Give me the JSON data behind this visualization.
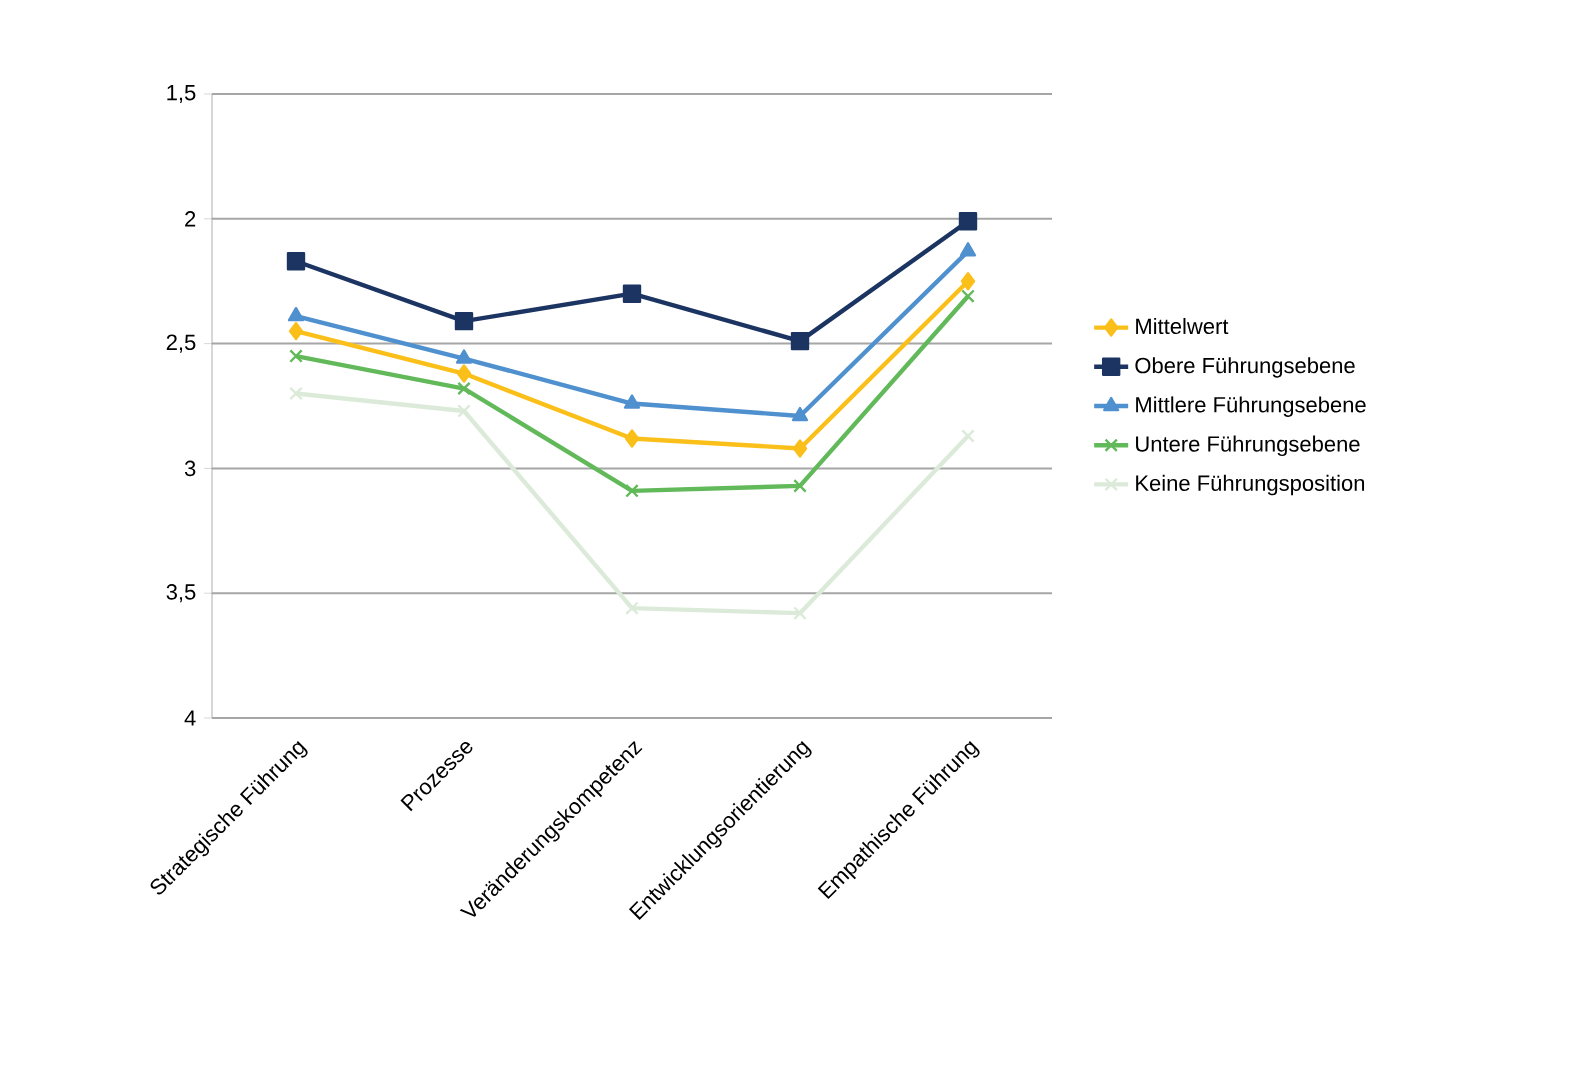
{
  "chart_data": {
    "type": "line",
    "categories": [
      "Strategische Führung",
      "Prozesse",
      "Veränderungskompetenz",
      "Entwicklungsorientierung",
      "Empathische Führung"
    ],
    "ylim": [
      4,
      1.5
    ],
    "yticks": [
      {
        "value": 1.5,
        "label": "1,5"
      },
      2,
      {
        "value": 2.5,
        "label": "2,5"
      },
      3,
      {
        "value": 3.5,
        "label": "3,5"
      },
      4
    ],
    "grid": "y",
    "legend": "right",
    "line_style": "solid",
    "series": [
      {
        "name": "Mittelwert",
        "color": "#fbbf1a",
        "marker": "diamond",
        "values": [
          2.45,
          2.62,
          2.88,
          2.92,
          2.25
        ]
      },
      {
        "name": "Obere Führungsebene",
        "color": "#1c3462",
        "marker": "square",
        "values": [
          2.17,
          2.41,
          2.3,
          2.49,
          2.01
        ]
      },
      {
        "name": "Mittlere Führungsebene",
        "color": "#4f90cf",
        "marker": "triangle",
        "values": [
          2.39,
          2.56,
          2.74,
          2.79,
          2.13
        ]
      },
      {
        "name": "Untere Führungsebene",
        "color": "#62b95a",
        "marker": "cross",
        "values": [
          2.55,
          2.68,
          3.09,
          3.07,
          2.31
        ]
      },
      {
        "name": "Keine Führungsposition",
        "color": "#dcebd9",
        "marker": "cross",
        "values": [
          2.7,
          2.77,
          3.56,
          3.58,
          2.87
        ]
      }
    ]
  }
}
